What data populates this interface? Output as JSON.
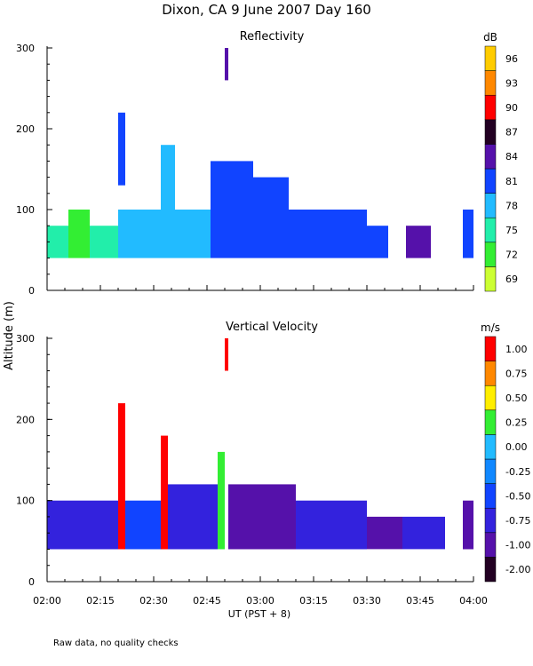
{
  "header": {
    "title": "Dixon, CA  9 June 2007  Day 160"
  },
  "footer": {
    "note": "Raw data, no quality checks"
  },
  "shared": {
    "ylabel": "Altitude (m)",
    "xlabel": "UT  (PST + 8)",
    "y_ticks": [
      "0",
      "100",
      "200",
      "300"
    ],
    "x_ticks": [
      "02:00",
      "02:15",
      "02:30",
      "02:45",
      "03:00",
      "03:15",
      "03:30",
      "03:45",
      "04:00"
    ]
  },
  "chart_data": [
    {
      "type": "heatmap",
      "title": "Reflectivity",
      "units": "dB",
      "xlim": [
        0,
        120
      ],
      "ylim": [
        0,
        300
      ],
      "xlabel": "UT  (PST + 8)",
      "ylabel": "Altitude (m)",
      "colorbar": {
        "labels": [
          "69",
          "72",
          "75",
          "78",
          "81",
          "84",
          "87",
          "90",
          "93",
          "96"
        ],
        "colors": [
          "#ccff33",
          "#33ee33",
          "#22eeaa",
          "#22bbff",
          "#1144ff",
          "#5511aa",
          "#220022",
          "#ff0000",
          "#ff8800",
          "#ffcc00"
        ]
      },
      "columns": [
        {
          "x": 0,
          "w": 6,
          "bottom": 40,
          "top": 80,
          "color": "#22eeaa"
        },
        {
          "x": 6,
          "w": 6,
          "bottom": 40,
          "top": 100,
          "color": "#33ee33"
        },
        {
          "x": 12,
          "w": 8,
          "bottom": 40,
          "top": 80,
          "color": "#22eeaa"
        },
        {
          "x": 20,
          "w": 12,
          "bottom": 40,
          "top": 100,
          "color": "#22bbff"
        },
        {
          "x": 20,
          "w": 2,
          "bottom": 130,
          "top": 220,
          "color": "#1144ff"
        },
        {
          "x": 32,
          "w": 4,
          "bottom": 40,
          "top": 180,
          "color": "#22bbff"
        },
        {
          "x": 36,
          "w": 10,
          "bottom": 40,
          "top": 100,
          "color": "#22bbff"
        },
        {
          "x": 46,
          "w": 12,
          "bottom": 40,
          "top": 160,
          "color": "#1144ff"
        },
        {
          "x": 50,
          "w": 1,
          "bottom": 260,
          "top": 300,
          "color": "#5511aa"
        },
        {
          "x": 58,
          "w": 10,
          "bottom": 40,
          "top": 140,
          "color": "#1144ff"
        },
        {
          "x": 68,
          "w": 10,
          "bottom": 40,
          "top": 100,
          "color": "#1144ff"
        },
        {
          "x": 78,
          "w": 12,
          "bottom": 40,
          "top": 100,
          "color": "#1144ff"
        },
        {
          "x": 90,
          "w": 6,
          "bottom": 40,
          "top": 80,
          "color": "#1144ff"
        },
        {
          "x": 101,
          "w": 7,
          "bottom": 40,
          "top": 80,
          "color": "#5511aa"
        },
        {
          "x": 117,
          "w": 3,
          "bottom": 40,
          "top": 100,
          "color": "#1144ff"
        }
      ]
    },
    {
      "type": "heatmap",
      "title": "Vertical Velocity",
      "units": "m/s",
      "xlim": [
        0,
        120
      ],
      "ylim": [
        0,
        300
      ],
      "xlabel": "UT  (PST + 8)",
      "ylabel": "Altitude (m)",
      "colorbar": {
        "labels": [
          "-2.00",
          "-1.00",
          "-0.75",
          "-0.50",
          "-0.25",
          "0.00",
          "0.25",
          "0.50",
          "0.75",
          "1.00"
        ],
        "colors": [
          "#220022",
          "#5511aa",
          "#3322dd",
          "#1144ff",
          "#1188ff",
          "#22bbff",
          "#33ee33",
          "#ffee00",
          "#ff8800",
          "#ff0000"
        ]
      },
      "columns": [
        {
          "x": 0,
          "w": 20,
          "bottom": 40,
          "top": 100,
          "color": "#3322dd"
        },
        {
          "x": 20,
          "w": 2,
          "bottom": 40,
          "top": 220,
          "color": "#ff0000"
        },
        {
          "x": 22,
          "w": 10,
          "bottom": 40,
          "top": 100,
          "color": "#1144ff"
        },
        {
          "x": 32,
          "w": 2,
          "bottom": 40,
          "top": 180,
          "color": "#ff0000"
        },
        {
          "x": 34,
          "w": 14,
          "bottom": 40,
          "top": 120,
          "color": "#3322dd"
        },
        {
          "x": 48,
          "w": 2,
          "bottom": 40,
          "top": 160,
          "color": "#33ee33"
        },
        {
          "x": 50,
          "w": 1,
          "bottom": 260,
          "top": 300,
          "color": "#ff0000"
        },
        {
          "x": 51,
          "w": 19,
          "bottom": 40,
          "top": 120,
          "color": "#5511aa"
        },
        {
          "x": 70,
          "w": 20,
          "bottom": 40,
          "top": 100,
          "color": "#3322dd"
        },
        {
          "x": 90,
          "w": 10,
          "bottom": 40,
          "top": 80,
          "color": "#5511aa"
        },
        {
          "x": 100,
          "w": 12,
          "bottom": 40,
          "top": 80,
          "color": "#3322dd"
        },
        {
          "x": 117,
          "w": 3,
          "bottom": 40,
          "top": 100,
          "color": "#5511aa"
        }
      ]
    }
  ]
}
